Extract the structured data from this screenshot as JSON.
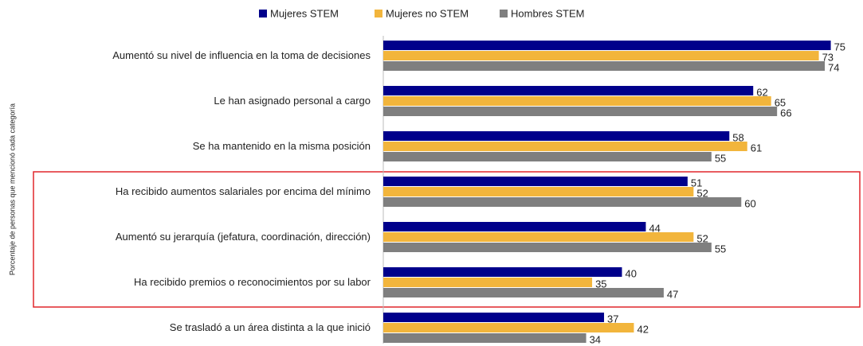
{
  "chart_data": {
    "type": "hbar",
    "y_label": "Porcentaje de personas que mencionó cada categoría",
    "categories": [
      "Aumentó su nivel de influencia en la toma de decisiones",
      "Le han asignado personal a cargo",
      "Se ha mantenido en la misma posición",
      "Ha recibido aumentos salariales por encima del mínimo",
      "Aumentó su jerarquía (jefatura, coordinación, dirección)",
      "Ha recibido premios o reconocimientos por su labor",
      "Se trasladó a un área distinta a la que inició"
    ],
    "series": [
      {
        "name": "Mujeres STEM",
        "color": "#00008b",
        "values": [
          75,
          62,
          58,
          51,
          44,
          40,
          37
        ]
      },
      {
        "name": "Mujeres no STEM",
        "color": "#f2b53c",
        "values": [
          73,
          65,
          61,
          52,
          52,
          35,
          42
        ]
      },
      {
        "name": "Hombres STEM",
        "color": "#7f7f7f",
        "values": [
          74,
          66,
          55,
          60,
          55,
          47,
          34
        ]
      }
    ],
    "xlim": [
      0,
      80
    ],
    "legend": "top"
  }
}
